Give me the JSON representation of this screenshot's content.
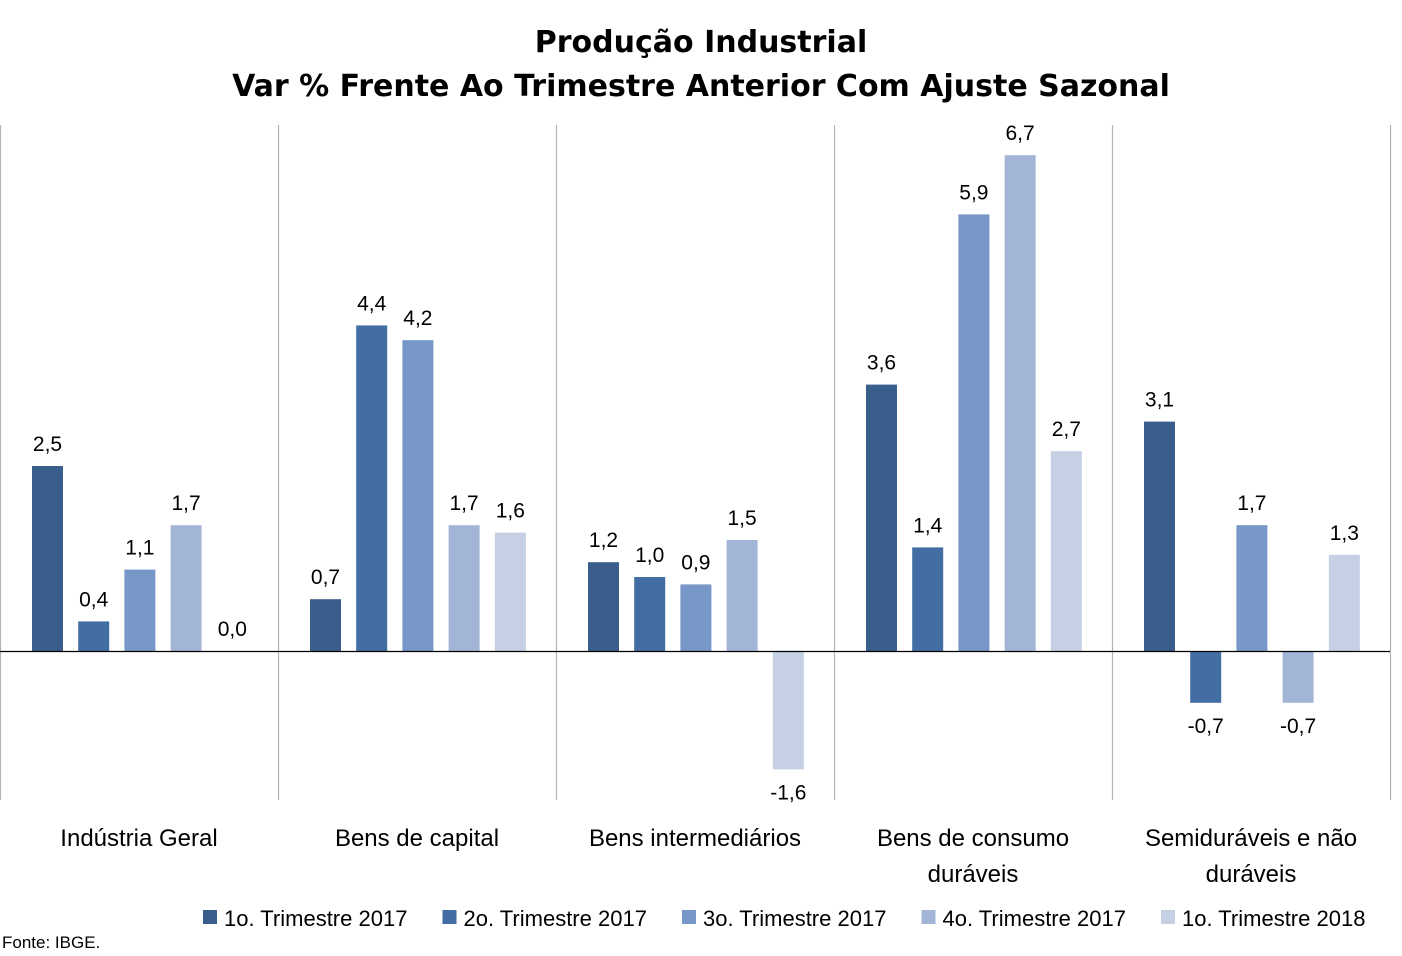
{
  "chart_data": {
    "type": "bar",
    "title": "Produção Industrial",
    "subtitle": "Var % Frente Ao Trimestre Anterior Com Ajuste Sazonal",
    "categories": [
      [
        "Indústria Geral"
      ],
      [
        "Bens de capital"
      ],
      [
        "Bens intermediários"
      ],
      [
        "Bens de consumo",
        "duráveis"
      ],
      [
        "Semiduráveis e não",
        "duráveis"
      ]
    ],
    "series": [
      {
        "name": "1o. Trimestre 2017",
        "color": "#3a5e8c",
        "values": [
          2.5,
          0.7,
          1.2,
          3.6,
          3.1
        ]
      },
      {
        "name": "2o. Trimestre 2017",
        "color": "#436ea3",
        "values": [
          0.4,
          4.4,
          1.0,
          1.4,
          -0.7
        ]
      },
      {
        "name": "3o. Trimestre 2017",
        "color": "#7697c8",
        "values": [
          1.1,
          4.2,
          0.9,
          5.9,
          1.7
        ]
      },
      {
        "name": "4o. Trimestre 2017",
        "color": "#a2b5d7",
        "values": [
          1.7,
          1.7,
          1.5,
          6.7,
          -0.7
        ]
      },
      {
        "name": "1o. Trimestre 2018",
        "color": "#c5d0e4",
        "values": [
          0.0,
          1.6,
          -1.6,
          2.7,
          1.3
        ]
      }
    ],
    "data_labels": [
      [
        "2,5",
        "0,7",
        "1,2",
        "3,6",
        "3,1"
      ],
      [
        "0,4",
        "4,4",
        "1,0",
        "1,4",
        "-0,7"
      ],
      [
        "1,1",
        "4,2",
        "0,9",
        "5,9",
        "1,7"
      ],
      [
        "1,7",
        "1,7",
        "1,5",
        "6,7",
        "-0,7"
      ],
      [
        "0,0",
        "1,6",
        "-1,6",
        "2,7",
        "1,3"
      ]
    ],
    "ylim": [
      -2.0,
      7.1
    ],
    "grid": false,
    "legend_position": "bottom",
    "source": "Fonte: IBGE."
  }
}
